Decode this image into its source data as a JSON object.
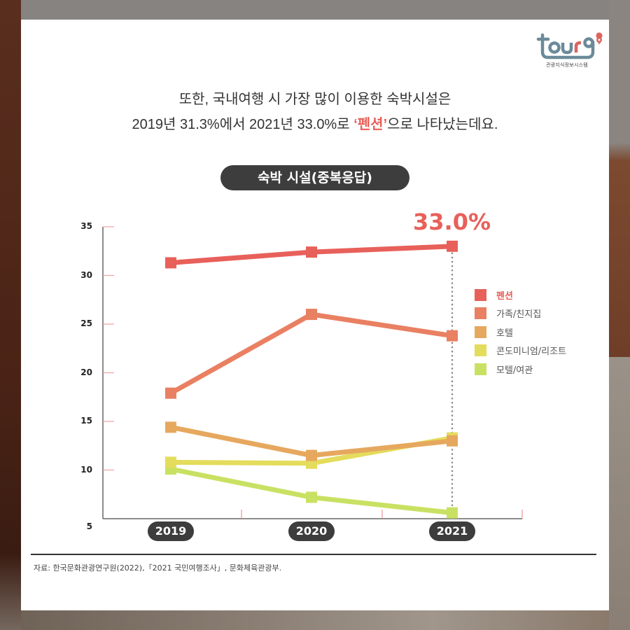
{
  "logo": {
    "brand": "tour9",
    "subtitle": "관광지식정보시스템"
  },
  "headline": {
    "line1": "또한, 국내여행 시 가장 많이 이용한 숙박시설은",
    "line2_prefix": "2019년 31.3%에서 2021년 33.0%로 ",
    "line2_highlight": "‘펜션’",
    "line2_suffix": "으로 나타났는데요."
  },
  "chart_title": "숙박 시설(중복응답)",
  "callout": "33.0%",
  "source": "자료: 한국문화관광연구원(2022),「2021 국민여행조사」, 문화체육관광부.",
  "colors": {
    "accent": "#e8605a",
    "pill_bg": "#3d3d3d",
    "guide_line": "#888888"
  },
  "chart_data": {
    "type": "line",
    "title": "숙박 시설(중복응답)",
    "xlabel": "",
    "ylabel": "",
    "categories": [
      "2019",
      "2020",
      "2021"
    ],
    "ylim": [
      5,
      35
    ],
    "yticks": [
      35,
      30,
      25,
      20,
      15,
      10,
      5
    ],
    "grid": false,
    "legend_position": "right",
    "annotations": [
      {
        "x": "2021",
        "series": "펜션",
        "text": "33.0%"
      }
    ],
    "series": [
      {
        "name": "펜션",
        "color": "#e8605a",
        "values": [
          31.3,
          32.4,
          33.0
        ]
      },
      {
        "name": "가족/친지집",
        "color": "#e98062",
        "values": [
          17.9,
          26.0,
          23.8
        ]
      },
      {
        "name": "호텔",
        "color": "#e6a85e",
        "values": [
          14.4,
          11.5,
          13.0
        ]
      },
      {
        "name": "콘도미니엄/리조트",
        "color": "#e4dc5c",
        "values": [
          10.8,
          10.7,
          13.3
        ]
      },
      {
        "name": "모텔/여관",
        "color": "#c9e163",
        "values": [
          10.1,
          7.2,
          5.6
        ]
      }
    ]
  }
}
